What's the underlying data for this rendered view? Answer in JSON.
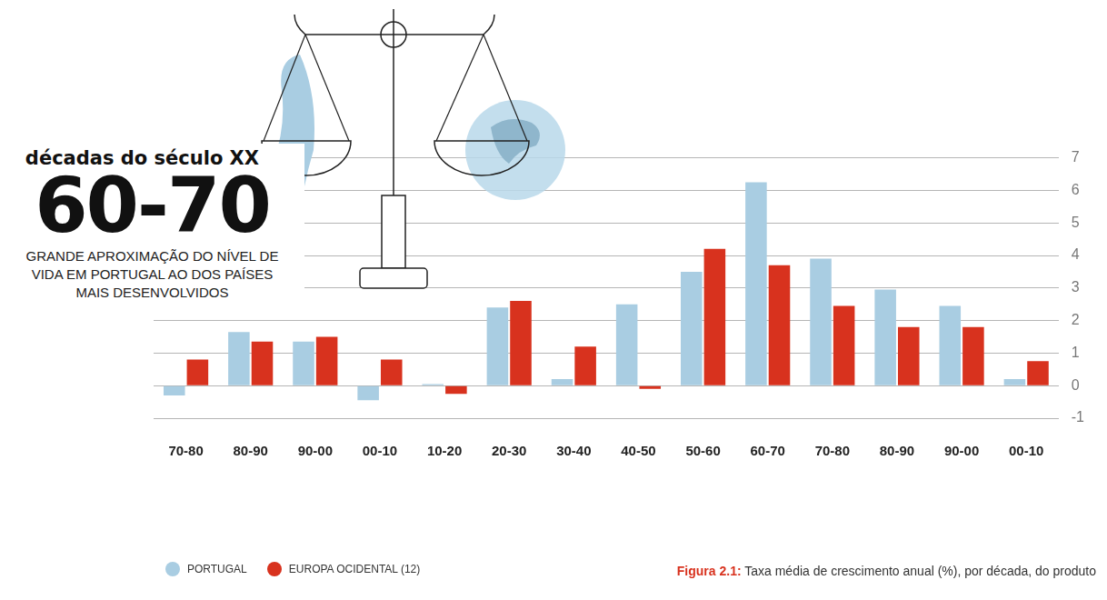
{
  "chart_data": {
    "type": "bar",
    "subtitle": "décadas do século XX",
    "title": "60-70",
    "annotations": [
      "GRANDE APROXIMAÇÃO DO NÍVEL DE VIDA EM PORTUGAL AO DOS PAÍSES MAIS DESENVOLVIDOS",
      "Figura 2.1: Taxa média de crescimento anual (%), por década, do produto"
    ],
    "categories": [
      "70-80",
      "80-90",
      "90-00",
      "00-10",
      "10-20",
      "20-30",
      "30-40",
      "40-50",
      "50-60",
      "60-70",
      "70-80",
      "80-90",
      "90-00",
      "00-10"
    ],
    "series": [
      {
        "name": "PORTUGAL",
        "color": "#a9cde2",
        "values": [
          -0.3,
          1.65,
          1.35,
          -0.45,
          0.05,
          2.4,
          0.2,
          2.5,
          3.5,
          6.25,
          3.9,
          2.95,
          2.45,
          0.2
        ]
      },
      {
        "name": "EUROPA OCIDENTAL (12)",
        "color": "#d8321e",
        "values": [
          0.8,
          1.35,
          1.5,
          0.8,
          -0.25,
          2.6,
          1.2,
          -0.1,
          4.2,
          3.7,
          2.45,
          1.8,
          1.8,
          0.75
        ]
      }
    ],
    "ylim": [
      -1,
      7
    ],
    "yticks": [
      -1,
      0,
      1,
      2,
      3,
      4,
      5,
      6,
      7
    ],
    "grid": true,
    "legend": "bottom-left"
  }
}
